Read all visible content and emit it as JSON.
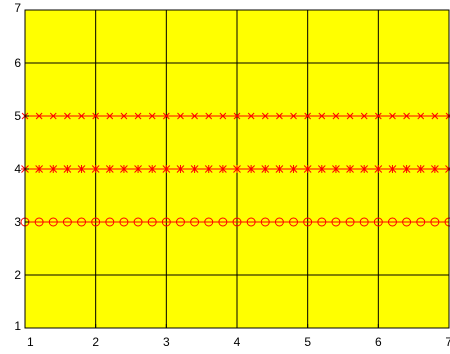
{
  "chart_data": {
    "type": "line",
    "title": "",
    "xlabel": "",
    "ylabel": "",
    "xlim": [
      1,
      7
    ],
    "ylim": [
      1,
      7
    ],
    "x_ticks": [
      "1",
      "2",
      "3",
      "4",
      "5",
      "6",
      "7"
    ],
    "y_ticks": [
      "1",
      "2",
      "3",
      "4",
      "5",
      "6",
      "7"
    ],
    "grid": true,
    "background_color": "#ffff00",
    "grid_color": "#000000",
    "series": [
      {
        "marker": "circle",
        "color": "#ff0000",
        "x": [
          1.0,
          1.2,
          1.4,
          1.6,
          1.8,
          2.0,
          2.2,
          2.4,
          2.6,
          2.8,
          3.0,
          3.2,
          3.4,
          3.6,
          3.8,
          4.0,
          4.2,
          4.4,
          4.6,
          4.8,
          5.0,
          5.2,
          5.4,
          5.6,
          5.8,
          6.0,
          6.2,
          6.4,
          6.6,
          6.8,
          7.0
        ],
        "y": [
          3,
          3,
          3,
          3,
          3,
          3,
          3,
          3,
          3,
          3,
          3,
          3,
          3,
          3,
          3,
          3,
          3,
          3,
          3,
          3,
          3,
          3,
          3,
          3,
          3,
          3,
          3,
          3,
          3,
          3,
          3
        ]
      },
      {
        "marker": "star",
        "color": "#ff0000",
        "x": [
          1.0,
          1.2,
          1.4,
          1.6,
          1.8,
          2.0,
          2.2,
          2.4,
          2.6,
          2.8,
          3.0,
          3.2,
          3.4,
          3.6,
          3.8,
          4.0,
          4.2,
          4.4,
          4.6,
          4.8,
          5.0,
          5.2,
          5.4,
          5.6,
          5.8,
          6.0,
          6.2,
          6.4,
          6.6,
          6.8,
          7.0
        ],
        "y": [
          4,
          4,
          4,
          4,
          4,
          4,
          4,
          4,
          4,
          4,
          4,
          4,
          4,
          4,
          4,
          4,
          4,
          4,
          4,
          4,
          4,
          4,
          4,
          4,
          4,
          4,
          4,
          4,
          4,
          4,
          4
        ]
      },
      {
        "marker": "x",
        "color": "#ff0000",
        "x": [
          1.0,
          1.2,
          1.4,
          1.6,
          1.8,
          2.0,
          2.2,
          2.4,
          2.6,
          2.8,
          3.0,
          3.2,
          3.4,
          3.6,
          3.8,
          4.0,
          4.2,
          4.4,
          4.6,
          4.8,
          5.0,
          5.2,
          5.4,
          5.6,
          5.8,
          6.0,
          6.2,
          6.4,
          6.6,
          6.8,
          7.0
        ],
        "y": [
          5,
          5,
          5,
          5,
          5,
          5,
          5,
          5,
          5,
          5,
          5,
          5,
          5,
          5,
          5,
          5,
          5,
          5,
          5,
          5,
          5,
          5,
          5,
          5,
          5,
          5,
          5,
          5,
          5,
          5,
          5
        ]
      }
    ]
  }
}
